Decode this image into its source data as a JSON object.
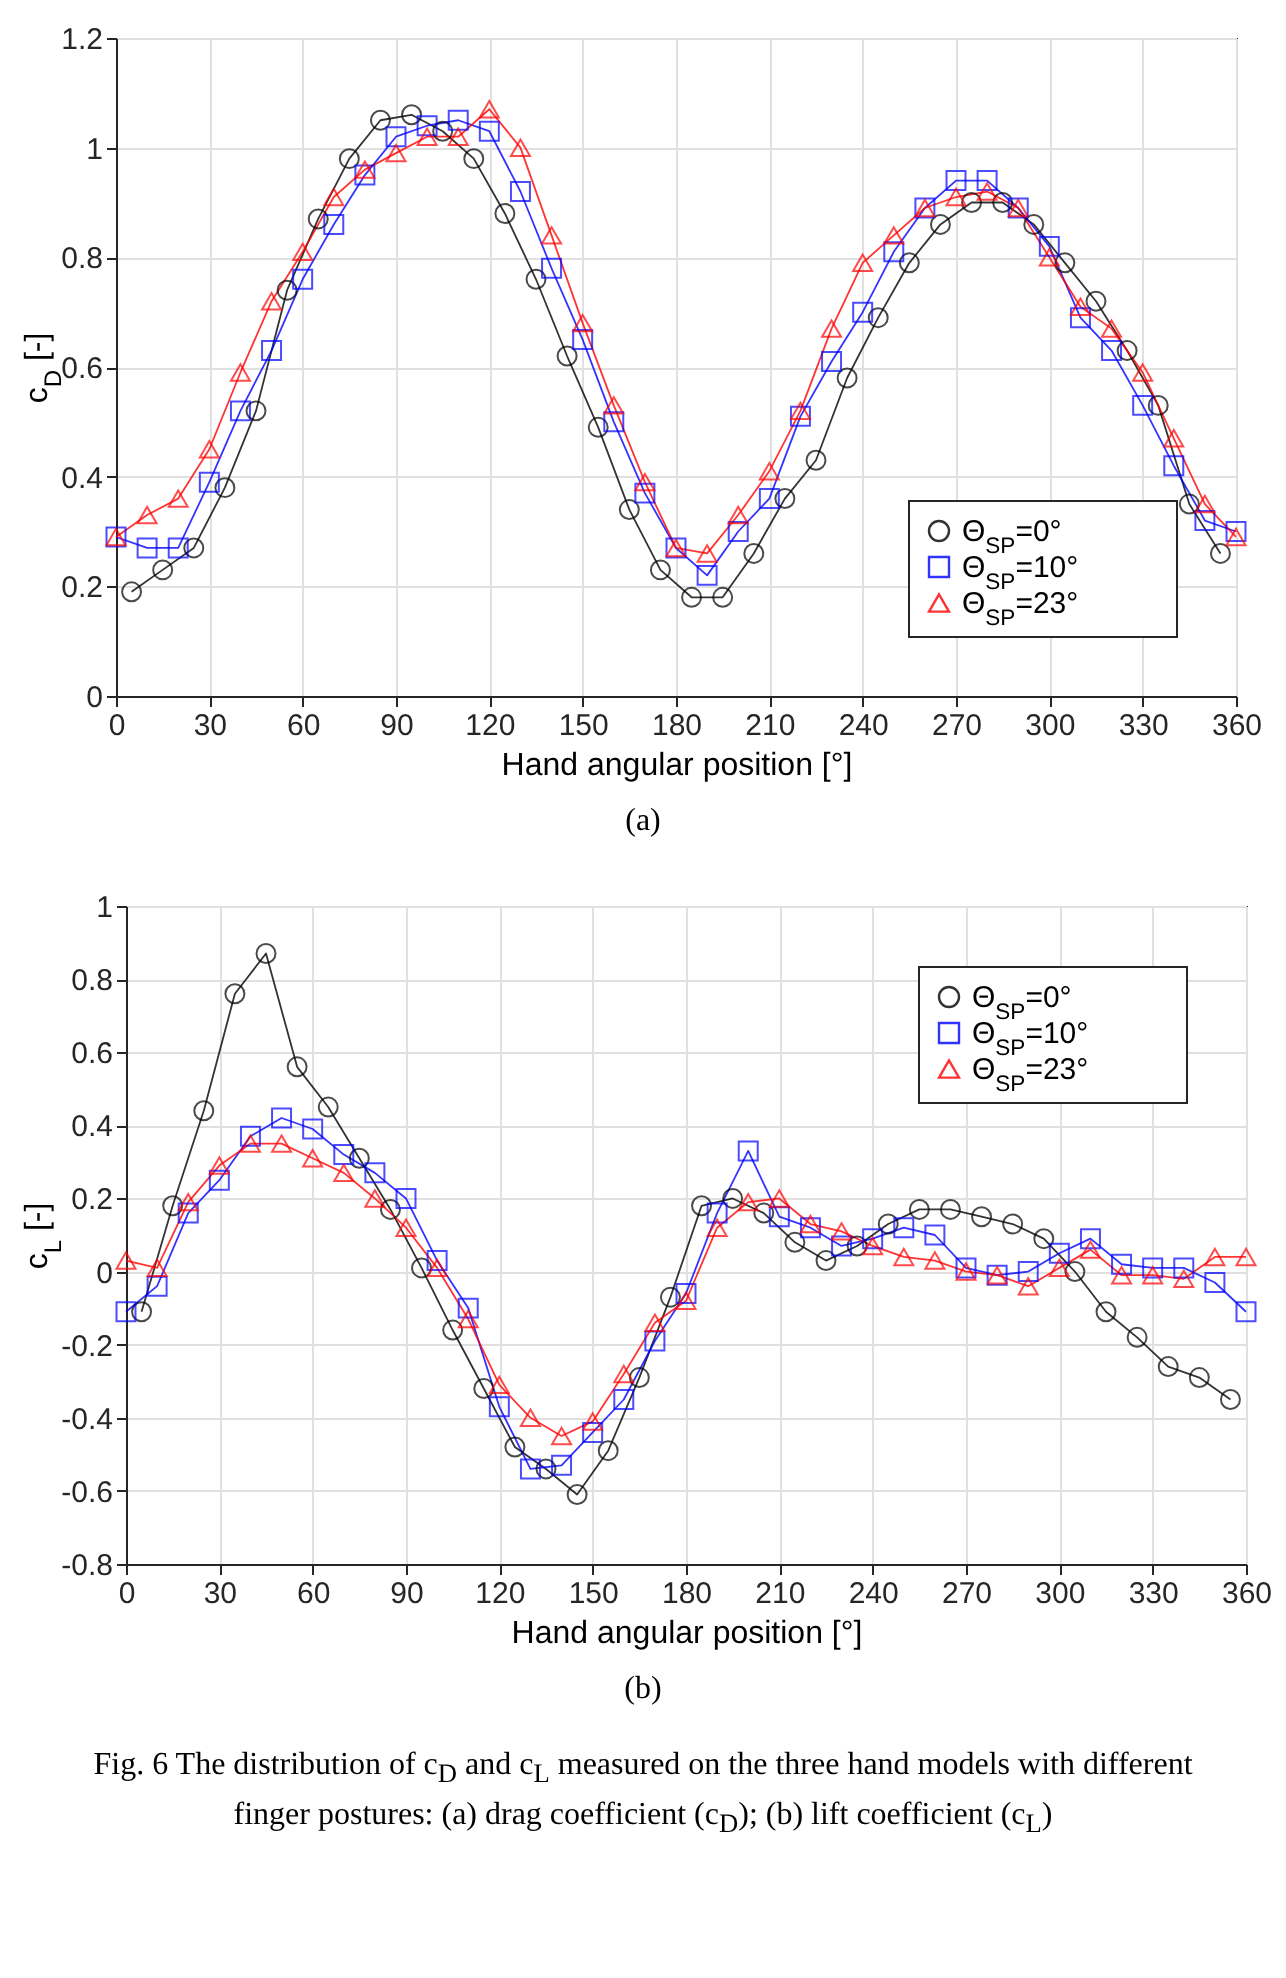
{
  "chart_data": [
    {
      "type": "line",
      "xlabel": "Hand angular position [°]",
      "ylabel": "c$_{D}$ [-]",
      "annotations": [
        "(a)"
      ],
      "x": [
        0,
        10,
        20,
        30,
        40,
        50,
        60,
        70,
        80,
        90,
        100,
        110,
        120,
        130,
        140,
        150,
        160,
        170,
        180,
        190,
        200,
        210,
        220,
        230,
        240,
        250,
        260,
        270,
        280,
        290,
        300,
        310,
        320,
        330,
        340,
        350,
        360
      ],
      "xlim": [
        0,
        360
      ],
      "xticks": [
        0,
        30,
        60,
        90,
        120,
        150,
        180,
        210,
        240,
        270,
        300,
        330,
        360
      ],
      "ylim": [
        0,
        1.2
      ],
      "yticks": [
        0,
        0.2,
        0.4,
        0.6,
        0.8,
        1,
        1.2
      ],
      "grid": true,
      "legend": "bottom right",
      "series": [
        {
          "name": "Θ$_{SP}$=0°",
          "color": "#000000",
          "marker": "circle",
          "x": [
            5,
            15,
            25,
            35,
            45,
            55,
            65,
            75,
            85,
            95,
            105,
            115,
            125,
            135,
            145,
            155,
            165,
            175,
            185,
            195,
            205,
            215,
            225,
            235,
            245,
            255,
            265,
            275,
            285,
            295,
            305,
            315,
            325,
            335,
            345,
            355
          ],
          "values": [
            0.19,
            0.23,
            0.27,
            0.38,
            0.52,
            0.74,
            0.87,
            0.98,
            1.05,
            1.06,
            1.03,
            0.98,
            0.88,
            0.76,
            0.62,
            0.49,
            0.34,
            0.23,
            0.18,
            0.18,
            0.26,
            0.36,
            0.43,
            0.58,
            0.69,
            0.79,
            0.86,
            0.9,
            0.9,
            0.86,
            0.79,
            0.72,
            0.63,
            0.53,
            0.35,
            0.26
          ]
        },
        {
          "name": "Θ$_{SP}$=10°",
          "color": "#0000ff",
          "marker": "square",
          "values": [
            0.29,
            0.27,
            0.27,
            0.39,
            0.52,
            0.63,
            0.76,
            0.86,
            0.95,
            1.02,
            1.04,
            1.05,
            1.03,
            0.92,
            0.78,
            0.65,
            0.5,
            0.37,
            0.27,
            0.22,
            0.3,
            0.36,
            0.51,
            0.61,
            0.7,
            0.81,
            0.89,
            0.94,
            0.94,
            0.89,
            0.82,
            0.69,
            0.63,
            0.53,
            0.42,
            0.32,
            0.3
          ]
        },
        {
          "name": "Θ$_{SP}$=23°",
          "color": "#ff0000",
          "marker": "triangle",
          "values": [
            0.29,
            0.33,
            0.36,
            0.45,
            0.59,
            0.72,
            0.81,
            0.91,
            0.96,
            0.99,
            1.02,
            1.02,
            1.07,
            1,
            0.84,
            0.68,
            0.53,
            0.39,
            0.27,
            0.26,
            0.33,
            0.41,
            0.52,
            0.67,
            0.79,
            0.84,
            0.89,
            0.91,
            0.92,
            0.89,
            0.8,
            0.71,
            0.67,
            0.59,
            0.47,
            0.35,
            0.29
          ]
        }
      ]
    },
    {
      "type": "line",
      "xlabel": "Hand angular position [°]",
      "ylabel": "c$_{L}$ [-]",
      "annotations": [
        "(b)",
        "Fig. 6 The distribution of c$_{D}$ and c$_{L}$ measured on the three hand models with different finger postures: (a) drag coefficient (c$_{D}$); (b) lift coefficient (c$_{L}$)"
      ],
      "x": [
        0,
        10,
        20,
        30,
        40,
        50,
        60,
        70,
        80,
        90,
        100,
        110,
        120,
        130,
        140,
        150,
        160,
        170,
        180,
        190,
        200,
        210,
        220,
        230,
        240,
        250,
        260,
        270,
        280,
        290,
        300,
        310,
        320,
        330,
        340,
        350,
        360
      ],
      "xlim": [
        0,
        360
      ],
      "xticks": [
        0,
        30,
        60,
        90,
        120,
        150,
        180,
        210,
        240,
        270,
        300,
        330,
        360
      ],
      "ylim": [
        -0.8,
        1
      ],
      "yticks": [
        -0.8,
        -0.6,
        -0.4,
        -0.2,
        0,
        0.2,
        0.4,
        0.6,
        0.8,
        1
      ],
      "grid": true,
      "legend": "top right",
      "series": [
        {
          "name": "Θ$_{SP}$=0°",
          "color": "#000000",
          "marker": "circle",
          "x": [
            5,
            15,
            25,
            35,
            45,
            55,
            65,
            75,
            85,
            95,
            105,
            115,
            125,
            135,
            145,
            155,
            165,
            175,
            185,
            195,
            205,
            215,
            225,
            235,
            245,
            255,
            265,
            275,
            285,
            295,
            305,
            315,
            325,
            335,
            345,
            355
          ],
          "values": [
            -0.11,
            0.18,
            0.44,
            0.76,
            0.87,
            0.56,
            0.45,
            0.31,
            0.17,
            0.01,
            -0.16,
            -0.32,
            -0.48,
            -0.54,
            -0.61,
            -0.49,
            -0.29,
            -0.07,
            0.18,
            0.2,
            0.16,
            0.08,
            0.03,
            0.07,
            0.13,
            0.17,
            0.17,
            0.15,
            0.13,
            0.09,
            0,
            -0.11,
            -0.18,
            -0.26,
            -0.29,
            -0.35
          ]
        },
        {
          "name": "Θ$_{SP}$=10°",
          "color": "#0000ff",
          "marker": "square",
          "values": [
            -0.11,
            -0.04,
            0.16,
            0.25,
            0.37,
            0.42,
            0.39,
            0.32,
            0.27,
            0.2,
            0.03,
            -0.1,
            -0.37,
            -0.54,
            -0.53,
            -0.44,
            -0.35,
            -0.19,
            -0.06,
            0.16,
            0.33,
            0.15,
            0.12,
            0.07,
            0.09,
            0.12,
            0.1,
            0.01,
            -0.01,
            0,
            0.05,
            0.09,
            0.02,
            0.01,
            0.01,
            -0.03,
            -0.11
          ]
        },
        {
          "name": "Θ$_{SP}$=23°",
          "color": "#ff0000",
          "marker": "triangle",
          "values": [
            0.03,
            0.01,
            0.19,
            0.29,
            0.35,
            0.35,
            0.31,
            0.27,
            0.2,
            0.12,
            0.01,
            -0.13,
            -0.31,
            -0.4,
            -0.45,
            -0.41,
            -0.28,
            -0.14,
            -0.08,
            0.12,
            0.19,
            0.2,
            0.13,
            0.11,
            0.07,
            0.04,
            0.03,
            0,
            -0.01,
            -0.04,
            0.01,
            0.06,
            -0.01,
            -0.01,
            -0.02,
            0.04,
            0.04
          ]
        }
      ]
    }
  ]
}
